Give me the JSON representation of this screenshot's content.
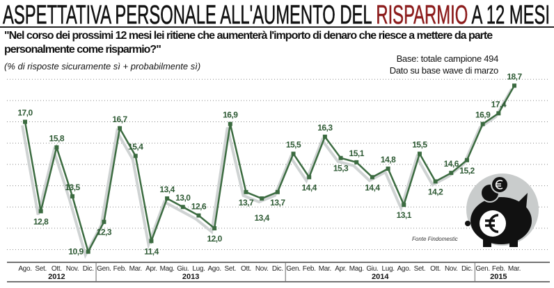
{
  "header": {
    "title_pre": "ASPETTATIVA PERSONALE ALL'AUMENTO DEL ",
    "title_highlight": "RISPARMIO",
    "title_post": " A 12 MESI",
    "question": "\"Nel corso dei prossimi 12 mesi lei ritiene che aumenterà l'importo di denaro che riesce a mettere da parte personalmente come risparmio?\"",
    "note": "(% di risposte sicuramente sì + probabilmente sì)",
    "base_line1": "Base: totale campione 494",
    "base_line2": "Dato su base wave di marzo"
  },
  "source": "Fonte Findomestic",
  "colors": {
    "line": "#3b6b40",
    "shadow": "#cfd3d3",
    "highlight": "#8c1c1c",
    "icon_bg": "#c9cccc"
  },
  "chart_data": {
    "type": "line",
    "title": "ASPETTATIVA PERSONALE ALL'AUMENTO DEL RISPARMIO A 12 MESI",
    "xlabel": "",
    "ylabel": "%",
    "ylim": [
      10.4,
      19.3
    ],
    "grid": true,
    "categories": [
      "Ago.",
      "Set.",
      "Ott.",
      "Nov.",
      "Dic.",
      "Gen.",
      "Feb.",
      "Mar.",
      "Apr.",
      "Mag.",
      "Giu.",
      "Lug.",
      "Ago.",
      "Set.",
      "Ott.",
      "Nov.",
      "Dic.",
      "Gen.",
      "Feb.",
      "Mar.",
      "Apr.",
      "Mag.",
      "Giu.",
      "Lug.",
      "Ago.",
      "Set.",
      "Ott.",
      "Nov.",
      "Dic.",
      "Gen.",
      "Feb.",
      "Mar."
    ],
    "years": [
      {
        "label": "2012",
        "start": 0,
        "end": 4
      },
      {
        "label": "2013",
        "start": 5,
        "end": 16
      },
      {
        "label": "2014",
        "start": 17,
        "end": 28
      },
      {
        "label": "2015",
        "start": 29,
        "end": 31
      }
    ],
    "values": [
      17.0,
      12.8,
      15.8,
      13.5,
      10.9,
      12.3,
      16.7,
      15.4,
      11.4,
      13.4,
      13.0,
      12.6,
      12.0,
      16.9,
      13.7,
      13.4,
      13.7,
      15.5,
      14.4,
      16.3,
      15.3,
      15.1,
      14.4,
      14.8,
      13.1,
      15.5,
      14.2,
      14.6,
      15.2,
      16.9,
      17.4,
      18.7
    ],
    "value_labels": [
      "17,0",
      "12,8",
      "15,8",
      "13,5",
      "10,9",
      "12,3",
      "16,7",
      "15,4",
      "11,4",
      "13,4",
      "13,0",
      "12,6",
      "12,0",
      "16,9",
      "13,7",
      "13,4",
      "13,7",
      "15,5",
      "14,4",
      "16,3",
      "15,3",
      "15,1",
      "14,4",
      "14,8",
      "13,1",
      "15,5",
      "14,2",
      "14,6",
      "15,2",
      "16,9",
      "17,4",
      "18,7"
    ]
  }
}
